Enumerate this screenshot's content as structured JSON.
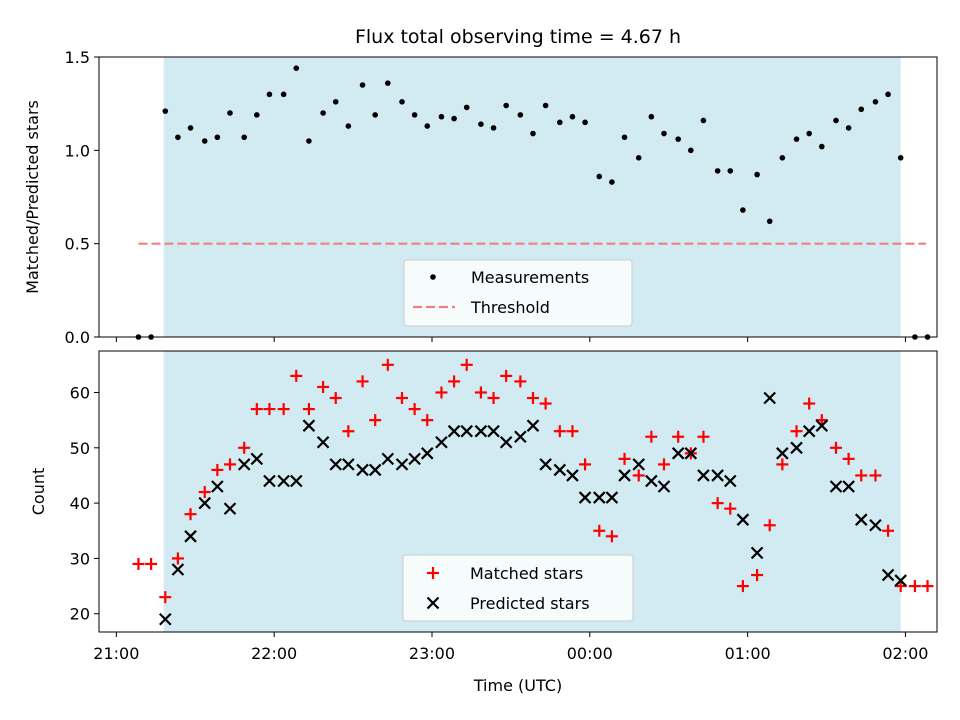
{
  "chart_data": [
    {
      "type": "scatter",
      "title": "Flux total observing time = 4.67 h",
      "ylabel": "Matched/Predicted stars",
      "ylim": [
        0,
        1.5
      ],
      "yticks": [
        "0.0",
        "0.5",
        "1.0",
        "1.5"
      ],
      "xlim": [
        -0.11,
        5.2
      ],
      "shaded_range": [
        0.3,
        4.97
      ],
      "shade_color": "#add8e6",
      "threshold": {
        "name": "Threshold",
        "value": 0.5,
        "x_range": [
          0.14,
          5.13
        ],
        "color": "#f08080"
      },
      "legend": {
        "placement": "lower-center",
        "entries": [
          "Measurements",
          "Threshold"
        ]
      },
      "series": [
        {
          "name": "Measurements",
          "marker": "dot",
          "color": "#000000",
          "x": [
            0.14,
            0.22,
            0.31,
            0.39,
            0.47,
            0.56,
            0.64,
            0.72,
            0.81,
            0.89,
            0.97,
            1.06,
            1.14,
            1.22,
            1.31,
            1.39,
            1.47,
            1.56,
            1.64,
            1.72,
            1.81,
            1.89,
            1.97,
            2.06,
            2.14,
            2.22,
            2.31,
            2.39,
            2.47,
            2.56,
            2.64,
            2.72,
            2.81,
            2.89,
            2.97,
            3.06,
            3.14,
            3.22,
            3.31,
            3.39,
            3.47,
            3.56,
            3.64,
            3.72,
            3.81,
            3.89,
            3.97,
            4.06,
            4.14,
            4.22,
            4.31,
            4.39,
            4.47,
            4.56,
            4.64,
            4.72,
            4.81,
            4.89,
            4.97,
            5.06,
            5.14
          ],
          "y": [
            0.0,
            0.0,
            1.21,
            1.07,
            1.12,
            1.05,
            1.07,
            1.2,
            1.07,
            1.19,
            1.3,
            1.3,
            1.44,
            1.05,
            1.2,
            1.26,
            1.13,
            1.35,
            1.19,
            1.36,
            1.26,
            1.19,
            1.13,
            1.18,
            1.17,
            1.23,
            1.14,
            1.12,
            1.24,
            1.19,
            1.09,
            1.24,
            1.15,
            1.18,
            1.15,
            0.86,
            0.83,
            1.07,
            0.96,
            1.18,
            1.09,
            1.06,
            1.0,
            1.16,
            0.89,
            0.89,
            0.68,
            0.87,
            0.62,
            0.96,
            1.06,
            1.09,
            1.02,
            1.16,
            1.12,
            1.22,
            1.26,
            1.3,
            0.96,
            0.0,
            0.0
          ]
        }
      ]
    },
    {
      "type": "scatter",
      "xlabel": "Time (UTC)",
      "ylabel": "Count",
      "ylim": [
        16.7,
        67.5
      ],
      "yticks": [
        "20",
        "30",
        "40",
        "50",
        "60"
      ],
      "xlim": [
        -0.11,
        5.2
      ],
      "xticks": [
        "21:00",
        "22:00",
        "23:00",
        "00:00",
        "01:00",
        "02:00"
      ],
      "shaded_range": [
        0.3,
        4.97
      ],
      "shade_color": "#add8e6",
      "legend": {
        "placement": "lower-center",
        "entries": [
          "Matched stars",
          "Predicted stars"
        ]
      },
      "series": [
        {
          "name": "Matched stars",
          "marker": "plus",
          "color": "#ff0000",
          "x": [
            0.14,
            0.22,
            0.31,
            0.39,
            0.47,
            0.56,
            0.64,
            0.72,
            0.81,
            0.89,
            0.97,
            1.06,
            1.14,
            1.22,
            1.31,
            1.39,
            1.47,
            1.56,
            1.64,
            1.72,
            1.81,
            1.89,
            1.97,
            2.06,
            2.14,
            2.22,
            2.31,
            2.39,
            2.47,
            2.56,
            2.64,
            2.72,
            2.81,
            2.89,
            2.97,
            3.06,
            3.14,
            3.22,
            3.31,
            3.39,
            3.47,
            3.56,
            3.64,
            3.72,
            3.81,
            3.89,
            3.97,
            4.06,
            4.14,
            4.22,
            4.31,
            4.39,
            4.47,
            4.56,
            4.64,
            4.72,
            4.81,
            4.89,
            4.97,
            5.06,
            5.14
          ],
          "y": [
            29,
            29,
            23,
            30,
            38,
            42,
            46,
            47,
            50,
            57,
            57,
            57,
            63,
            57,
            61,
            59,
            53,
            62,
            55,
            65,
            59,
            57,
            55,
            60,
            62,
            65,
            60,
            59,
            63,
            62,
            59,
            58,
            53,
            53,
            47,
            35,
            34,
            48,
            45,
            52,
            47,
            52,
            49,
            52,
            40,
            39,
            25,
            27,
            36,
            47,
            53,
            58,
            55,
            50,
            48,
            45,
            45,
            35,
            25,
            25,
            25
          ]
        },
        {
          "name": "Predicted stars",
          "marker": "x",
          "color": "#000000",
          "x": [
            0.31,
            0.39,
            0.47,
            0.56,
            0.64,
            0.72,
            0.81,
            0.89,
            0.97,
            1.06,
            1.14,
            1.22,
            1.31,
            1.39,
            1.47,
            1.56,
            1.64,
            1.72,
            1.81,
            1.89,
            1.97,
            2.06,
            2.14,
            2.22,
            2.31,
            2.39,
            2.47,
            2.56,
            2.64,
            2.72,
            2.81,
            2.89,
            2.97,
            3.06,
            3.14,
            3.22,
            3.31,
            3.39,
            3.47,
            3.56,
            3.64,
            3.72,
            3.81,
            3.89,
            3.97,
            4.06,
            4.14,
            4.22,
            4.31,
            4.39,
            4.47,
            4.56,
            4.64,
            4.72,
            4.81,
            4.89,
            4.97
          ],
          "y": [
            19,
            28,
            34,
            40,
            43,
            39,
            47,
            48,
            44,
            44,
            44,
            54,
            51,
            47,
            47,
            46,
            46,
            48,
            47,
            48,
            49,
            51,
            53,
            53,
            53,
            53,
            51,
            52,
            54,
            47,
            46,
            45,
            41,
            41,
            41,
            45,
            47,
            44,
            43,
            49,
            49,
            45,
            45,
            44,
            37,
            31,
            59,
            49,
            50,
            53,
            54,
            43,
            43,
            37,
            36,
            27,
            26
          ]
        }
      ]
    }
  ]
}
